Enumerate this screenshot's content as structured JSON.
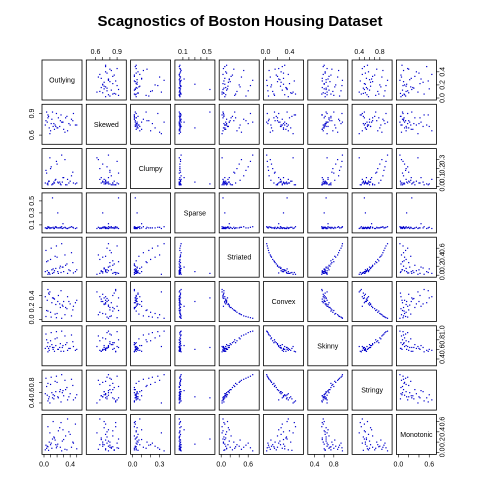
{
  "chart_data": {
    "type": "scatter",
    "title": "Scagnostics of Boston Housing Dataset",
    "variables": [
      "Outlying",
      "Skewed",
      "Clumpy",
      "Sparse",
      "Striated",
      "Convex",
      "Skinny",
      "Stringy",
      "Monotonic"
    ],
    "point_color": "#0000cc",
    "grid": false,
    "axis_ranges": {
      "Outlying": [
        0.0,
        0.55
      ],
      "Skewed": [
        0.5,
        1.0
      ],
      "Clumpy": [
        0.0,
        0.4
      ],
      "Sparse": [
        0.0,
        0.6
      ],
      "Striated": [
        0.0,
        0.8
      ],
      "Convex": [
        0.0,
        0.6
      ],
      "Skinny": [
        0.3,
        1.05
      ],
      "Stringy": [
        0.3,
        1.0
      ],
      "Monotonic": [
        0.0,
        0.7
      ]
    },
    "axis_ticks": {
      "Outlying": {
        "side": "bottom",
        "ticks": [
          0.0,
          0.1,
          0.2,
          0.3,
          0.4,
          0.5
        ],
        "labels": [
          {
            "v": 0.0,
            "t": "0.0"
          },
          {
            "v": 0.4,
            "t": "0.4"
          }
        ]
      },
      "Skewed": {
        "side": "top",
        "ticks": [
          0.6,
          0.7,
          0.8,
          0.9
        ],
        "labels": [
          {
            "v": 0.6,
            "t": "0.6"
          },
          {
            "v": 0.9,
            "t": "0.9"
          }
        ]
      },
      "Clumpy": {
        "side": "bottom",
        "ticks": [
          0.0,
          0.1,
          0.2,
          0.3
        ],
        "labels": [
          {
            "v": 0.0,
            "t": "0.0"
          },
          {
            "v": 0.3,
            "t": "0.3"
          }
        ]
      },
      "Sparse": {
        "side": "top",
        "ticks": [
          0.1,
          0.2,
          0.3,
          0.4,
          0.5
        ],
        "labels": [
          {
            "v": 0.1,
            "t": "0.1"
          },
          {
            "v": 0.5,
            "t": "0.5"
          }
        ]
      },
      "Striated": {
        "side": "bottom",
        "ticks": [
          0.0,
          0.2,
          0.4,
          0.6
        ],
        "labels": [
          {
            "v": 0.0,
            "t": "0.0"
          },
          {
            "v": 0.6,
            "t": "0.6"
          }
        ]
      },
      "Convex": {
        "side": "top",
        "ticks": [
          0.0,
          0.2,
          0.4
        ],
        "labels": [
          {
            "v": 0.0,
            "t": "0.0"
          },
          {
            "v": 0.4,
            "t": "0.4"
          }
        ]
      },
      "Skinny": {
        "side": "bottom",
        "ticks": [
          0.4,
          0.6,
          0.8
        ],
        "labels": [
          {
            "v": 0.4,
            "t": "0.4"
          },
          {
            "v": 0.8,
            "t": "0.8"
          }
        ]
      },
      "Stringy": {
        "side": "top",
        "ticks": [
          0.4,
          0.5,
          0.6,
          0.7,
          0.8
        ],
        "labels": [
          {
            "v": 0.4,
            "t": "0.4"
          },
          {
            "v": 0.8,
            "t": "0.8"
          }
        ]
      },
      "Monotonic": {
        "side": "bottom",
        "ticks": [
          0.0,
          0.2,
          0.4,
          0.6
        ],
        "labels": [
          {
            "v": 0.0,
            "t": "0.0"
          },
          {
            "v": 0.6,
            "t": "0.6"
          }
        ]
      }
    },
    "y_axis_ticks": {
      "Outlying": {
        "side": "right",
        "ticks": [
          0.0,
          0.2,
          0.4
        ],
        "labels": [
          {
            "v": 0.0,
            "t": "0.0"
          },
          {
            "v": 0.2,
            "t": "0.2"
          },
          {
            "v": 0.4,
            "t": "0.4"
          }
        ]
      },
      "Skewed": {
        "side": "left",
        "ticks": [
          0.6,
          0.9
        ],
        "labels": [
          {
            "v": 0.6,
            "t": "0.6"
          },
          {
            "v": 0.9,
            "t": "0.9"
          }
        ]
      },
      "Clumpy": {
        "side": "right",
        "ticks": [
          0.0,
          0.1,
          0.2,
          0.3
        ],
        "labels": [
          {
            "v": 0.0,
            "t": "0.0"
          },
          {
            "v": 0.1,
            "t": "0.1"
          },
          {
            "v": 0.2,
            "t": "0.2"
          },
          {
            "v": 0.3,
            "t": "0.3"
          }
        ]
      },
      "Sparse": {
        "side": "left",
        "ticks": [
          0.1,
          0.3,
          0.5
        ],
        "labels": [
          {
            "v": 0.1,
            "t": "0.1"
          },
          {
            "v": 0.3,
            "t": "0.3"
          },
          {
            "v": 0.5,
            "t": "0.5"
          }
        ]
      },
      "Striated": {
        "side": "right",
        "ticks": [
          0.0,
          0.2,
          0.4,
          0.6
        ],
        "labels": [
          {
            "v": 0.0,
            "t": "0.0"
          },
          {
            "v": 0.2,
            "t": "0.2"
          },
          {
            "v": 0.4,
            "t": "0.4"
          },
          {
            "v": 0.6,
            "t": "0.6"
          }
        ]
      },
      "Convex": {
        "side": "left",
        "ticks": [
          0.0,
          0.2,
          0.4
        ],
        "labels": [
          {
            "v": 0.0,
            "t": "0.0"
          },
          {
            "v": 0.2,
            "t": "0.2"
          },
          {
            "v": 0.4,
            "t": "0.4"
          }
        ]
      },
      "Skinny": {
        "side": "right",
        "ticks": [
          0.4,
          0.6,
          0.8,
          1.0
        ],
        "labels": [
          {
            "v": 0.4,
            "t": "0.4"
          },
          {
            "v": 0.6,
            "t": "0.6"
          },
          {
            "v": 0.8,
            "t": "0.8"
          },
          {
            "v": 1.0,
            "t": "1.0"
          }
        ]
      },
      "Stringy": {
        "side": "left",
        "ticks": [
          0.4,
          0.6,
          0.8
        ],
        "labels": [
          {
            "v": 0.4,
            "t": "0.4"
          },
          {
            "v": 0.6,
            "t": "0.6"
          },
          {
            "v": 0.8,
            "t": "0.8"
          }
        ]
      },
      "Monotonic": {
        "side": "right",
        "ticks": [
          0.0,
          0.2,
          0.4,
          0.6
        ],
        "labels": [
          {
            "v": 0.0,
            "t": "0.0"
          },
          {
            "v": 0.2,
            "t": "0.2"
          },
          {
            "v": 0.4,
            "t": "0.4"
          },
          {
            "v": 0.6,
            "t": "0.6"
          }
        ]
      }
    },
    "observations": [
      {
        "Outlying": 0.02,
        "Skewed": 0.74,
        "Clumpy": 0.04,
        "Sparse": 0.05,
        "Striated": 0.08,
        "Convex": 0.38,
        "Skinny": 0.62,
        "Stringy": 0.58,
        "Monotonic": 0.05
      },
      {
        "Outlying": 0.05,
        "Skewed": 0.78,
        "Clumpy": 0.03,
        "Sparse": 0.04,
        "Striated": 0.1,
        "Convex": 0.32,
        "Skinny": 0.66,
        "Stringy": 0.55,
        "Monotonic": 0.12
      },
      {
        "Outlying": 0.08,
        "Skewed": 0.7,
        "Clumpy": 0.06,
        "Sparse": 0.06,
        "Striated": 0.05,
        "Convex": 0.42,
        "Skinny": 0.58,
        "Stringy": 0.52,
        "Monotonic": 0.2
      },
      {
        "Outlying": 0.12,
        "Skewed": 0.82,
        "Clumpy": 0.02,
        "Sparse": 0.05,
        "Striated": 0.12,
        "Convex": 0.28,
        "Skinny": 0.7,
        "Stringy": 0.6,
        "Monotonic": 0.08
      },
      {
        "Outlying": 0.15,
        "Skewed": 0.76,
        "Clumpy": 0.05,
        "Sparse": 0.04,
        "Striated": 0.06,
        "Convex": 0.35,
        "Skinny": 0.64,
        "Stringy": 0.48,
        "Monotonic": 0.3
      },
      {
        "Outlying": 0.18,
        "Skewed": 0.72,
        "Clumpy": 0.08,
        "Sparse": 0.07,
        "Striated": 0.15,
        "Convex": 0.25,
        "Skinny": 0.68,
        "Stringy": 0.62,
        "Monotonic": 0.15
      },
      {
        "Outlying": 0.22,
        "Skewed": 0.84,
        "Clumpy": 0.04,
        "Sparse": 0.05,
        "Striated": 0.04,
        "Convex": 0.4,
        "Skinny": 0.6,
        "Stringy": 0.5,
        "Monotonic": 0.42
      },
      {
        "Outlying": 0.25,
        "Skewed": 0.8,
        "Clumpy": 0.03,
        "Sparse": 0.06,
        "Striated": 0.2,
        "Convex": 0.2,
        "Skinny": 0.72,
        "Stringy": 0.66,
        "Monotonic": 0.1
      },
      {
        "Outlying": 0.3,
        "Skewed": 0.68,
        "Clumpy": 0.1,
        "Sparse": 0.05,
        "Striated": 0.08,
        "Convex": 0.3,
        "Skinny": 0.56,
        "Stringy": 0.54,
        "Monotonic": 0.25
      },
      {
        "Outlying": 0.35,
        "Skewed": 0.86,
        "Clumpy": 0.02,
        "Sparse": 0.04,
        "Striated": 0.25,
        "Convex": 0.18,
        "Skinny": 0.74,
        "Stringy": 0.7,
        "Monotonic": 0.05
      },
      {
        "Outlying": 0.4,
        "Skewed": 0.74,
        "Clumpy": 0.06,
        "Sparse": 0.06,
        "Striated": 0.1,
        "Convex": 0.26,
        "Skinny": 0.62,
        "Stringy": 0.58,
        "Monotonic": 0.35
      },
      {
        "Outlying": 0.45,
        "Skewed": 0.9,
        "Clumpy": 0.04,
        "Sparse": 0.05,
        "Striated": 0.05,
        "Convex": 0.22,
        "Skinny": 0.66,
        "Stringy": 0.46,
        "Monotonic": 0.18
      },
      {
        "Outlying": 0.04,
        "Skewed": 0.92,
        "Clumpy": 0.15,
        "Sparse": 0.04,
        "Striated": 0.3,
        "Convex": 0.15,
        "Skinny": 0.8,
        "Stringy": 0.72,
        "Monotonic": 0.08
      },
      {
        "Outlying": 0.06,
        "Skewed": 0.88,
        "Clumpy": 0.02,
        "Sparse": 0.07,
        "Striated": 0.02,
        "Convex": 0.5,
        "Skinny": 0.55,
        "Stringy": 0.44,
        "Monotonic": 0.5
      },
      {
        "Outlying": 0.1,
        "Skewed": 0.66,
        "Clumpy": 0.2,
        "Sparse": 0.05,
        "Striated": 0.35,
        "Convex": 0.12,
        "Skinny": 0.78,
        "Stringy": 0.76,
        "Monotonic": 0.15
      },
      {
        "Outlying": 0.14,
        "Skewed": 0.72,
        "Clumpy": 0.03,
        "Sparse": 0.06,
        "Striated": 0.14,
        "Convex": 0.36,
        "Skinny": 0.6,
        "Stringy": 0.56,
        "Monotonic": 0.6
      },
      {
        "Outlying": 0.2,
        "Skewed": 0.7,
        "Clumpy": 0.25,
        "Sparse": 0.05,
        "Striated": 0.4,
        "Convex": 0.1,
        "Skinny": 0.84,
        "Stringy": 0.8,
        "Monotonic": 0.12
      },
      {
        "Outlying": 0.28,
        "Skewed": 0.78,
        "Clumpy": 0.05,
        "Sparse": 0.04,
        "Striated": 0.18,
        "Convex": 0.24,
        "Skinny": 0.64,
        "Stringy": 0.6,
        "Monotonic": 0.22
      },
      {
        "Outlying": 0.32,
        "Skewed": 0.64,
        "Clumpy": 0.3,
        "Sparse": 0.06,
        "Striated": 0.45,
        "Convex": 0.08,
        "Skinny": 0.88,
        "Stringy": 0.84,
        "Monotonic": 0.06
      },
      {
        "Outlying": 0.38,
        "Skewed": 0.76,
        "Clumpy": 0.04,
        "Sparse": 0.05,
        "Striated": 0.12,
        "Convex": 0.3,
        "Skinny": 0.62,
        "Stringy": 0.52,
        "Monotonic": 0.4
      },
      {
        "Outlying": 0.42,
        "Skewed": 0.82,
        "Clumpy": 0.12,
        "Sparse": 0.07,
        "Striated": 0.5,
        "Convex": 0.06,
        "Skinny": 0.9,
        "Stringy": 0.86,
        "Monotonic": 0.1
      },
      {
        "Outlying": 0.48,
        "Skewed": 0.74,
        "Clumpy": 0.03,
        "Sparse": 0.04,
        "Striated": 0.08,
        "Convex": 0.28,
        "Skinny": 0.58,
        "Stringy": 0.5,
        "Monotonic": 0.55
      },
      {
        "Outlying": 0.03,
        "Skewed": 0.8,
        "Clumpy": 0.18,
        "Sparse": 0.05,
        "Striated": 0.55,
        "Convex": 0.05,
        "Skinny": 0.92,
        "Stringy": 0.88,
        "Monotonic": 0.14
      },
      {
        "Outlying": 0.07,
        "Skewed": 0.86,
        "Clumpy": 0.06,
        "Sparse": 0.06,
        "Striated": 0.06,
        "Convex": 0.44,
        "Skinny": 0.62,
        "Stringy": 0.48,
        "Monotonic": 0.04
      },
      {
        "Outlying": 0.11,
        "Skewed": 0.76,
        "Clumpy": 0.22,
        "Sparse": 0.05,
        "Striated": 0.6,
        "Convex": 0.04,
        "Skinny": 0.95,
        "Stringy": 0.9,
        "Monotonic": 0.18
      },
      {
        "Outlying": 0.16,
        "Skewed": 0.68,
        "Clumpy": 0.04,
        "Sparse": 0.04,
        "Striated": 0.1,
        "Convex": 0.34,
        "Skinny": 0.56,
        "Stringy": 0.54,
        "Monotonic": 0.28
      },
      {
        "Outlying": 0.19,
        "Skewed": 0.9,
        "Clumpy": 0.28,
        "Sparse": 0.06,
        "Striated": 0.65,
        "Convex": 0.03,
        "Skinny": 0.97,
        "Stringy": 0.92,
        "Monotonic": 0.09
      },
      {
        "Outlying": 0.24,
        "Skewed": 0.72,
        "Clumpy": 0.05,
        "Sparse": 0.05,
        "Striated": 0.16,
        "Convex": 0.26,
        "Skinny": 0.64,
        "Stringy": 0.62,
        "Monotonic": 0.48
      },
      {
        "Outlying": 0.27,
        "Skewed": 0.78,
        "Clumpy": 0.35,
        "Sparse": 0.07,
        "Striated": 0.7,
        "Convex": 0.02,
        "Skinny": 0.98,
        "Stringy": 0.95,
        "Monotonic": 0.03
      },
      {
        "Outlying": 0.33,
        "Skewed": 0.84,
        "Clumpy": 0.02,
        "Sparse": 0.05,
        "Striated": 0.22,
        "Convex": 0.2,
        "Skinny": 0.7,
        "Stringy": 0.66,
        "Monotonic": 0.32
      },
      {
        "Outlying": 0.36,
        "Skewed": 0.66,
        "Clumpy": 0.08,
        "Sparse": 0.04,
        "Striated": 0.04,
        "Convex": 0.38,
        "Skinny": 0.58,
        "Stringy": 0.46,
        "Monotonic": 0.65
      },
      {
        "Outlying": 0.44,
        "Skewed": 0.8,
        "Clumpy": 0.16,
        "Sparse": 0.06,
        "Striated": 0.28,
        "Convex": 0.16,
        "Skinny": 0.76,
        "Stringy": 0.74,
        "Monotonic": 0.2
      },
      {
        "Outlying": 0.5,
        "Skewed": 0.74,
        "Clumpy": 0.04,
        "Sparse": 0.05,
        "Striated": 0.12,
        "Convex": 0.32,
        "Skinny": 0.6,
        "Stringy": 0.56,
        "Monotonic": 0.07
      },
      {
        "Outlying": 0.09,
        "Skewed": 0.62,
        "Clumpy": 0.32,
        "Sparse": 0.04,
        "Striated": 0.02,
        "Convex": 0.46,
        "Skinny": 0.66,
        "Stringy": 0.4,
        "Monotonic": 0.38
      },
      {
        "Outlying": 0.13,
        "Skewed": 0.92,
        "Clumpy": 0.03,
        "Sparse": 0.55,
        "Striated": 0.04,
        "Convex": 0.36,
        "Skinny": 0.64,
        "Stringy": 0.5,
        "Monotonic": 0.26
      },
      {
        "Outlying": 0.21,
        "Skewed": 0.7,
        "Clumpy": 0.05,
        "Sparse": 0.3,
        "Striated": 0.08,
        "Convex": 0.3,
        "Skinny": 0.6,
        "Stringy": 0.52,
        "Monotonic": 0.16
      },
      {
        "Outlying": 0.29,
        "Skewed": 0.78,
        "Clumpy": 0.1,
        "Sparse": 0.12,
        "Striated": 0.18,
        "Convex": 0.22,
        "Skinny": 0.68,
        "Stringy": 0.64,
        "Monotonic": 0.44
      },
      {
        "Outlying": 0.06,
        "Skewed": 0.84,
        "Clumpy": 0.04,
        "Sparse": 0.05,
        "Striated": 0.32,
        "Convex": 0.14,
        "Skinny": 0.74,
        "Stringy": 0.78,
        "Monotonic": 0.11
      },
      {
        "Outlying": 0.17,
        "Skewed": 0.74,
        "Clumpy": 0.07,
        "Sparse": 0.06,
        "Striated": 0.42,
        "Convex": 0.09,
        "Skinny": 0.82,
        "Stringy": 0.82,
        "Monotonic": 0.24
      },
      {
        "Outlying": 0.26,
        "Skewed": 0.88,
        "Clumpy": 0.02,
        "Sparse": 0.05,
        "Striated": 0.06,
        "Convex": 0.48,
        "Skinny": 0.56,
        "Stringy": 0.42,
        "Monotonic": 0.58
      }
    ]
  }
}
